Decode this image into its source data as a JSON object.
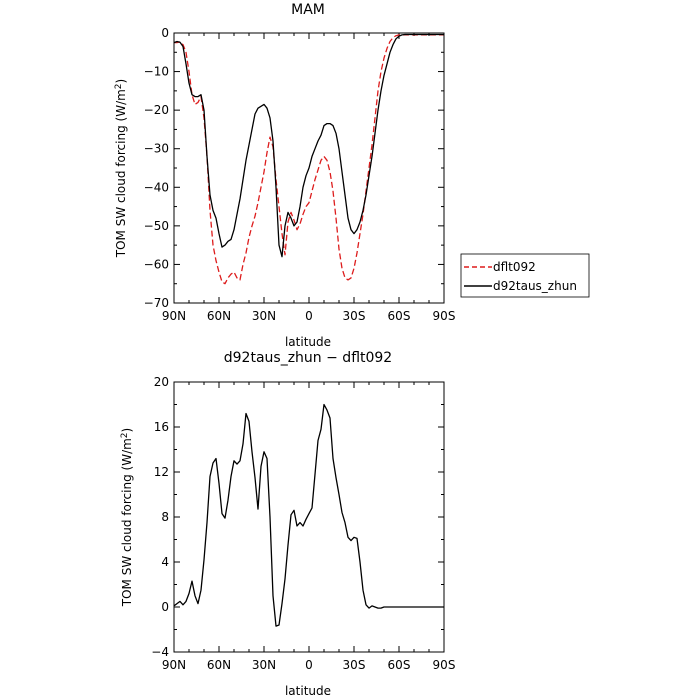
{
  "chart_data": [
    {
      "type": "line",
      "title": "MAM",
      "xlabel": "latitude",
      "ylabel": "TOM SW cloud forcing (W/m²)",
      "ylabel_main": "TOM SW cloud forcing (W/m",
      "ylabel_sup": "2",
      "ylabel_close": ")",
      "xlim": [
        90,
        -90
      ],
      "ylim": [
        -70,
        0
      ],
      "xticks": [
        90,
        60,
        30,
        0,
        -30,
        -60,
        -90
      ],
      "xtick_labels": [
        "90N",
        "60N",
        "30N",
        "0",
        "30S",
        "60S",
        "90S"
      ],
      "yticks": [
        0,
        -10,
        -20,
        -30,
        -40,
        -50,
        -60,
        -70
      ],
      "ytick_labels": [
        "0",
        "−10",
        "−20",
        "−30",
        "−40",
        "−50",
        "−60",
        "−70"
      ],
      "legend": {
        "placement": "right",
        "entries": [
          "dflt092",
          "d92taus_zhun"
        ]
      },
      "series": [
        {
          "name": "dflt092",
          "color": "#dd1c1c",
          "dash": "dashed",
          "x": [
            90,
            88,
            86,
            84,
            82,
            80,
            78,
            76,
            74,
            72,
            70,
            68,
            66,
            64,
            62,
            60,
            58,
            56,
            54,
            52,
            50,
            48,
            46,
            44,
            42,
            40,
            38,
            36,
            34,
            32,
            30,
            28,
            26,
            24,
            22,
            20,
            18,
            16,
            14,
            12,
            10,
            8,
            6,
            4,
            2,
            0,
            -2,
            -4,
            -6,
            -8,
            -10,
            -12,
            -14,
            -16,
            -18,
            -20,
            -22,
            -24,
            -26,
            -28,
            -30,
            -32,
            -34,
            -36,
            -38,
            -40,
            -42,
            -44,
            -46,
            -48,
            -50,
            -52,
            -54,
            -56,
            -58,
            -60,
            -62,
            -64,
            -66,
            -68,
            -70,
            -72,
            -74,
            -76,
            -78,
            -80,
            -82,
            -84,
            -86,
            -88,
            -90
          ],
          "y": [
            -2.5,
            -2.5,
            -2.3,
            -3,
            -5,
            -10,
            -16,
            -18.5,
            -18,
            -16.5,
            -22,
            -32,
            -46,
            -55,
            -59,
            -62,
            -64.5,
            -65,
            -63.5,
            -62.5,
            -62,
            -63.5,
            -64,
            -60,
            -57,
            -53,
            -50,
            -47.5,
            -44,
            -40,
            -36,
            -31,
            -27,
            -29.5,
            -38,
            -45,
            -52,
            -57.5,
            -49,
            -46.5,
            -48.5,
            -51,
            -49.5,
            -47,
            -45,
            -44,
            -41,
            -38,
            -35.5,
            -33,
            -32,
            -33,
            -36,
            -41,
            -48,
            -56,
            -61,
            -63.5,
            -64,
            -63.5,
            -61,
            -57,
            -52,
            -47,
            -41,
            -35,
            -29,
            -22,
            -15,
            -10,
            -6.5,
            -4,
            -2.2,
            -1.2,
            -0.7,
            -0.5,
            -0.5,
            -0.5,
            -0.5,
            -0.5,
            -0.5,
            -0.5,
            -0.5,
            -0.5,
            -0.5,
            -0.5,
            -0.5,
            -0.5,
            -0.5,
            -0.5,
            -0.5
          ]
        },
        {
          "name": "d92taus_zhun",
          "color": "#000000",
          "dash": "solid",
          "x": [
            90,
            88,
            86,
            84,
            82,
            80,
            78,
            76,
            74,
            72,
            70,
            68,
            66,
            64,
            62,
            60,
            58,
            56,
            54,
            52,
            50,
            48,
            46,
            44,
            42,
            40,
            38,
            36,
            34,
            32,
            30,
            28,
            26,
            24,
            22,
            20,
            18,
            16,
            14,
            12,
            10,
            8,
            6,
            4,
            2,
            0,
            -2,
            -4,
            -6,
            -8,
            -10,
            -12,
            -14,
            -16,
            -18,
            -20,
            -22,
            -24,
            -26,
            -28,
            -30,
            -32,
            -34,
            -36,
            -38,
            -40,
            -42,
            -44,
            -46,
            -48,
            -50,
            -52,
            -54,
            -56,
            -58,
            -60,
            -62,
            -64,
            -66,
            -68,
            -70,
            -72,
            -74,
            -76,
            -78,
            -80,
            -82,
            -84,
            -86,
            -88,
            -90
          ],
          "y": [
            -2.5,
            -2.2,
            -2.4,
            -3.5,
            -8,
            -13,
            -16,
            -16.5,
            -16.5,
            -16,
            -20,
            -32,
            -42,
            -46,
            -48,
            -52,
            -55.5,
            -55,
            -54,
            -53.5,
            -51,
            -47,
            -43,
            -38,
            -33,
            -29,
            -25,
            -21,
            -19.5,
            -19,
            -18.5,
            -19.5,
            -22,
            -28,
            -40,
            -55,
            -58,
            -50,
            -46.5,
            -48,
            -50,
            -49,
            -45,
            -40,
            -37,
            -35,
            -32,
            -30,
            -28,
            -26.5,
            -24,
            -23.5,
            -23.5,
            -24,
            -26,
            -30,
            -36,
            -42,
            -48,
            -51,
            -52,
            -51,
            -49,
            -46,
            -42,
            -37,
            -32,
            -26,
            -20,
            -15,
            -11,
            -8,
            -5,
            -3,
            -1.5,
            -0.8,
            -0.5,
            -0.4,
            -0.4,
            -0.4,
            -0.4,
            -0.4,
            -0.4,
            -0.4,
            -0.4,
            -0.4,
            -0.4,
            -0.4,
            -0.4,
            -0.4,
            -0.4
          ]
        }
      ]
    },
    {
      "type": "line",
      "title": "d92taus_zhun − dflt092",
      "xlabel": "latitude",
      "ylabel": "TOM SW cloud forcing (W/m²)",
      "ylabel_main": "TOM SW cloud forcing (W/m",
      "ylabel_sup": "2",
      "ylabel_close": ")",
      "xlim": [
        90,
        -90
      ],
      "ylim": [
        -4,
        20
      ],
      "xticks": [
        90,
        60,
        30,
        0,
        -30,
        -60,
        -90
      ],
      "xtick_labels": [
        "90N",
        "60N",
        "30N",
        "0",
        "30S",
        "60S",
        "90S"
      ],
      "yticks": [
        20,
        16,
        12,
        8,
        4,
        0,
        -4
      ],
      "ytick_labels": [
        "20",
        "16",
        "12",
        "8",
        "4",
        "0",
        "−4"
      ],
      "series": [
        {
          "color": "#000000",
          "dash": "solid",
          "x": [
            90,
            88,
            86,
            84,
            82,
            80,
            78,
            76,
            74,
            72,
            70,
            68,
            66,
            64,
            62,
            60,
            58,
            56,
            54,
            52,
            50,
            48,
            46,
            44,
            42,
            40,
            38,
            36,
            34,
            32,
            30,
            28,
            26,
            24,
            22,
            20,
            18,
            16,
            14,
            12,
            10,
            8,
            6,
            4,
            2,
            0,
            -2,
            -4,
            -6,
            -8,
            -10,
            -12,
            -14,
            -16,
            -18,
            -20,
            -22,
            -24,
            -26,
            -28,
            -30,
            -32,
            -34,
            -36,
            -38,
            -40,
            -42,
            -44,
            -46,
            -48,
            -50,
            -52,
            -54,
            -56,
            -58,
            -60,
            -62,
            -64,
            -66,
            -68,
            -70,
            -72,
            -74,
            -76,
            -78,
            -80,
            -82,
            -84,
            -86,
            -88,
            -90
          ],
          "y": [
            0.1,
            0.3,
            0.5,
            0.2,
            0.5,
            1.2,
            2.3,
            1.0,
            0.3,
            1.5,
            4.2,
            7.5,
            11.6,
            12.8,
            13.2,
            11.0,
            8.3,
            7.9,
            9.5,
            11.6,
            13.0,
            12.7,
            13.0,
            14.5,
            17.2,
            16.5,
            13.8,
            11.5,
            8.7,
            12.5,
            13.8,
            13.2,
            8.0,
            1.0,
            -1.7,
            -1.6,
            0.3,
            2.5,
            5.5,
            8.2,
            8.6,
            7.2,
            7.5,
            7.2,
            7.8,
            8.3,
            8.8,
            11.8,
            14.8,
            15.8,
            18.0,
            17.5,
            16.8,
            13.2,
            11.5,
            10.0,
            8.4,
            7.5,
            6.2,
            5.9,
            6.2,
            6.1,
            4.0,
            1.5,
            0.2,
            -0.1,
            0.1,
            0.0,
            -0.1,
            -0.1,
            0.0,
            0.0,
            0.0,
            0.0,
            0.0,
            0.0,
            0.0,
            0.0,
            0.0,
            0.0,
            0.0,
            0.0,
            0.0,
            0.0,
            0.0,
            0.0,
            0.0,
            0.0,
            0.0,
            0.0,
            0.0
          ]
        }
      ]
    }
  ]
}
